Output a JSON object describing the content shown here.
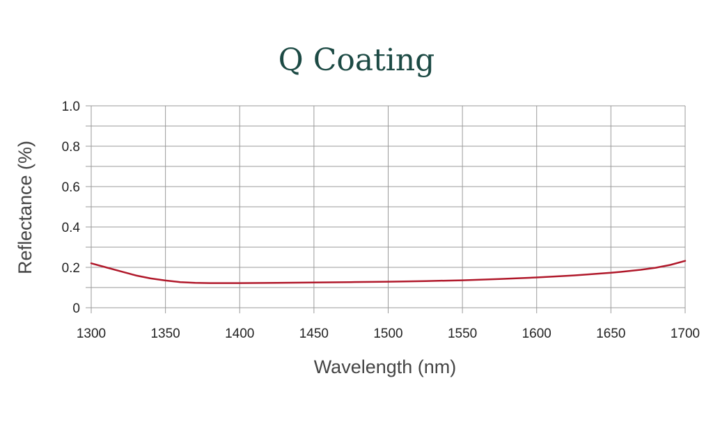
{
  "chart_data": {
    "type": "line",
    "title": "Q Coating",
    "xlabel": "Wavelength (nm)",
    "ylabel": "Reflectance (%)",
    "xlim": [
      1300,
      1700
    ],
    "ylim": [
      0,
      1.0
    ],
    "x_ticks": [
      "1300",
      "1350",
      "1400",
      "1450",
      "1500",
      "1550",
      "1600",
      "1650",
      "1700"
    ],
    "y_ticks": [
      "0",
      "0.2",
      "0.4",
      "0.6",
      "0.8",
      "1.0"
    ],
    "grid": true,
    "series": [
      {
        "color": "#b0182a",
        "x": [
          1300,
          1310,
          1320,
          1330,
          1340,
          1350,
          1360,
          1370,
          1380,
          1390,
          1400,
          1425,
          1450,
          1475,
          1500,
          1525,
          1550,
          1575,
          1600,
          1625,
          1650,
          1660,
          1670,
          1680,
          1690,
          1700
        ],
        "y": [
          0.22,
          0.2,
          0.18,
          0.16,
          0.145,
          0.135,
          0.127,
          0.123,
          0.122,
          0.122,
          0.122,
          0.123,
          0.125,
          0.127,
          0.129,
          0.132,
          0.136,
          0.142,
          0.15,
          0.16,
          0.173,
          0.18,
          0.188,
          0.198,
          0.212,
          0.232
        ]
      }
    ]
  }
}
